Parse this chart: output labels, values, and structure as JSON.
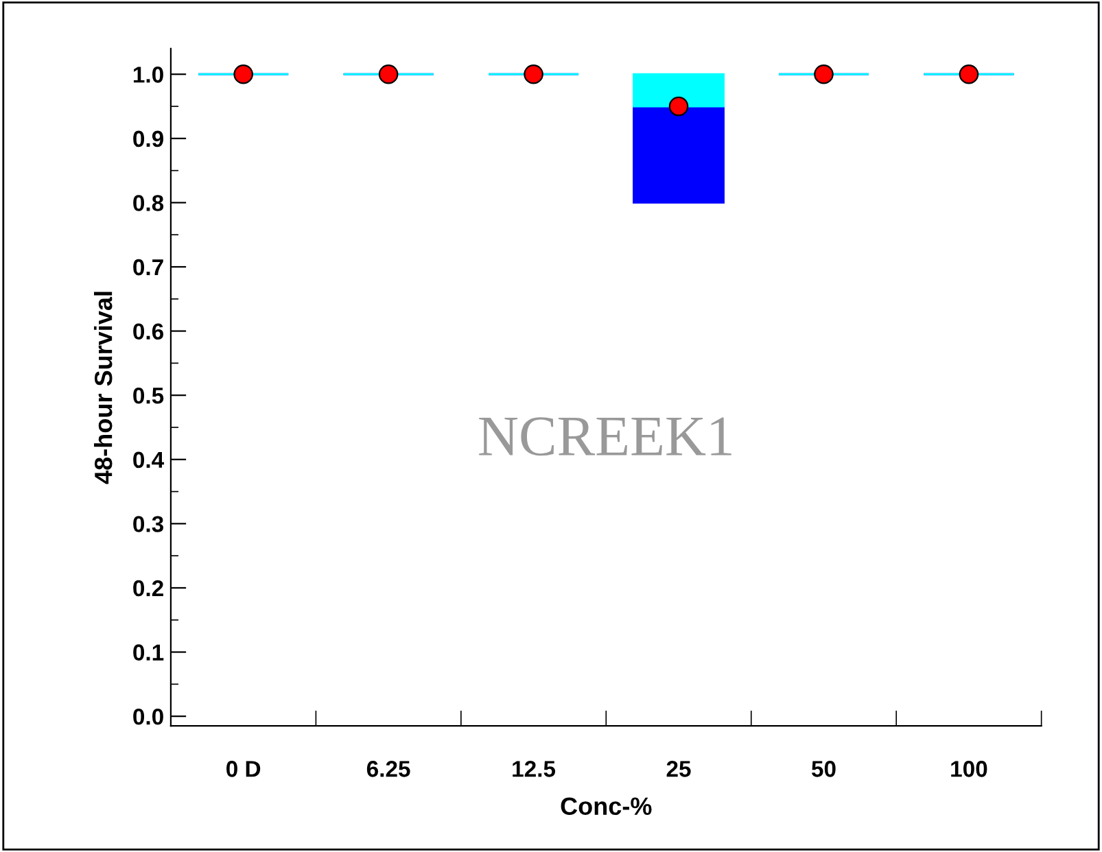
{
  "chart_data": {
    "type": "box",
    "xlabel": "Conc-%",
    "ylabel": "48-hour Survival",
    "categories": [
      "0 D",
      "6.25",
      "12.5",
      "25",
      "50",
      "100"
    ],
    "series": [
      {
        "type": "box",
        "color": "#0000ff",
        "boxes": [
          {
            "low": 1.0,
            "q1": 1.0,
            "median": 1.0,
            "q3": 1.0,
            "high": 1.0
          },
          {
            "low": 1.0,
            "q1": 1.0,
            "median": 1.0,
            "q3": 1.0,
            "high": 1.0
          },
          {
            "low": 1.0,
            "q1": 1.0,
            "median": 1.0,
            "q3": 1.0,
            "high": 1.0
          },
          {
            "low": 0.8,
            "q1": 0.8,
            "median": 0.95,
            "q3": 1.0,
            "high": 1.0
          },
          {
            "low": 1.0,
            "q1": 1.0,
            "median": 1.0,
            "q3": 1.0,
            "high": 1.0
          },
          {
            "low": 1.0,
            "q1": 1.0,
            "median": 1.0,
            "q3": 1.0,
            "high": 1.0
          }
        ]
      },
      {
        "type": "scatter",
        "color": "#ff0000",
        "x": [
          "0 D",
          "6.25",
          "12.5",
          "25",
          "50",
          "100"
        ],
        "values": [
          1.0,
          1.0,
          1.0,
          0.95,
          1.0,
          1.0
        ]
      }
    ],
    "marker": "circle",
    "ylim": [
      -0.015,
      1.04
    ],
    "yticks": [
      {
        "value": 0,
        "label": "0.0"
      },
      0.1,
      0.2,
      0.3,
      0.4,
      0.5,
      0.6,
      0.7,
      0.8,
      0.9,
      {
        "value": 1,
        "label": "1.0"
      }
    ],
    "annotations": [
      "NCREEK1"
    ],
    "grid": false,
    "legend": false
  }
}
